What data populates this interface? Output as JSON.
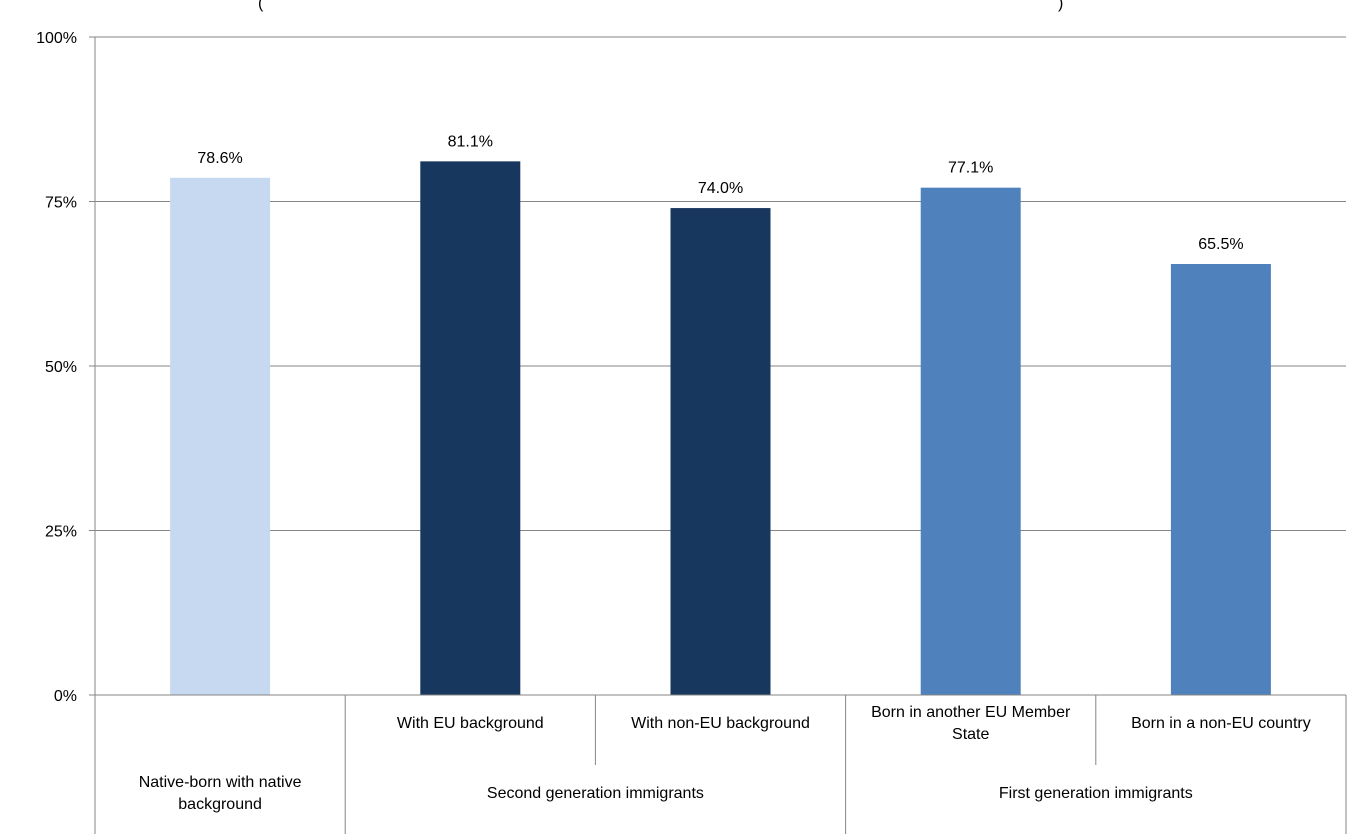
{
  "chart_data": {
    "type": "bar",
    "title": "(",
    "title_suffix": ")",
    "yticks": [
      "0%",
      "25%",
      "50%",
      "75%",
      "100%"
    ],
    "ylim": [
      0,
      100
    ],
    "grid": true,
    "legend": "none",
    "categories": [
      "Native-born with native background",
      "With EU background",
      "With non-EU background",
      "Born in another EU Member State",
      "Born in a non-EU country"
    ],
    "groups": [
      {
        "label": "Native-born with native background",
        "members": [
          0
        ]
      },
      {
        "label": "Second generation immigrants",
        "members": [
          1,
          2
        ]
      },
      {
        "label": "First generation immigrants",
        "members": [
          3,
          4
        ]
      }
    ],
    "values": [
      78.6,
      81.1,
      74.0,
      77.1,
      65.5
    ],
    "value_labels": [
      "78.6%",
      "81.1%",
      "74.0%",
      "77.1%",
      "65.5%"
    ],
    "colors": [
      "#c6d9f1",
      "#17375e",
      "#17375e",
      "#4f81bd",
      "#4f81bd"
    ],
    "axis_color": "#868686",
    "grid_color": "#868686"
  }
}
